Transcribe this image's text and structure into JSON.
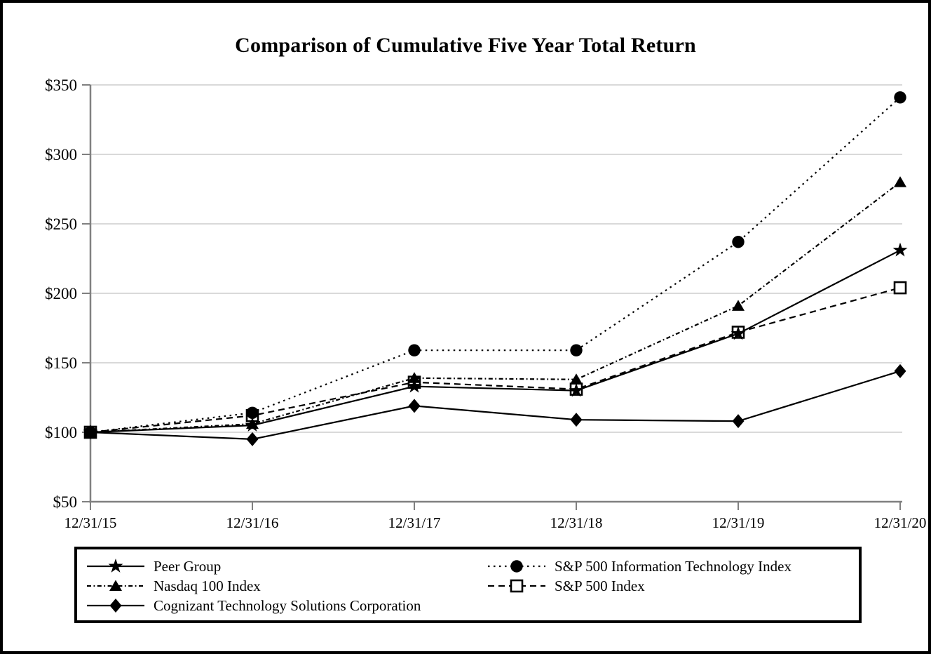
{
  "title": "Comparison of Cumulative Five Year Total Return",
  "colors": {
    "series": "#000000",
    "grid": "#d9d9d9",
    "axis": "#808080",
    "background": "#ffffff",
    "frame_border": "#000000"
  },
  "chart_data": {
    "type": "line",
    "title": "Comparison of Cumulative Five Year Total Return",
    "xlabel": "",
    "ylabel": "",
    "x_categories": [
      "12/31/15",
      "12/31/16",
      "12/31/17",
      "12/31/18",
      "12/31/19",
      "12/31/20"
    ],
    "ylim": [
      50,
      350
    ],
    "y_ticks": [
      {
        "value": 350,
        "label": "$350"
      },
      {
        "value": 300,
        "label": "$300"
      },
      {
        "value": 250,
        "label": "$250"
      },
      {
        "value": 200,
        "label": "$200"
      },
      {
        "value": 150,
        "label": "$150"
      },
      {
        "value": 100,
        "label": "$100"
      },
      {
        "value": 50,
        "label": "$50"
      }
    ],
    "grid": "horizontal",
    "legend_position": "bottom",
    "series": [
      {
        "name": "Peer Group",
        "marker": "star",
        "line": "solid",
        "values": [
          100,
          105,
          133,
          130,
          171,
          231
        ],
        "z": 1
      },
      {
        "name": "Nasdaq 100 Index",
        "marker": "triangle",
        "line": "dashdot",
        "values": [
          100,
          106,
          139,
          138,
          191,
          280
        ],
        "z": 2
      },
      {
        "name": "Cognizant Technology Solutions Corporation",
        "marker": "diamond",
        "line": "solid",
        "values": [
          100,
          95,
          119,
          109,
          108,
          144
        ],
        "z": 3
      },
      {
        "name": "S&P 500 Information Technology Index",
        "marker": "circle",
        "line": "dotted",
        "values": [
          100,
          114,
          159,
          159,
          237,
          341
        ],
        "z": 4
      },
      {
        "name": "S&P 500 Index",
        "marker": "square-open",
        "line": "dashed",
        "values": [
          100,
          112,
          136,
          131,
          172,
          204
        ],
        "z": 0
      }
    ],
    "legend_columns": [
      [
        "Peer Group",
        "Nasdaq 100 Index",
        "Cognizant Technology Solutions Corporation"
      ],
      [
        "S&P 500 Information Technology Index",
        "S&P 500 Index"
      ]
    ]
  }
}
